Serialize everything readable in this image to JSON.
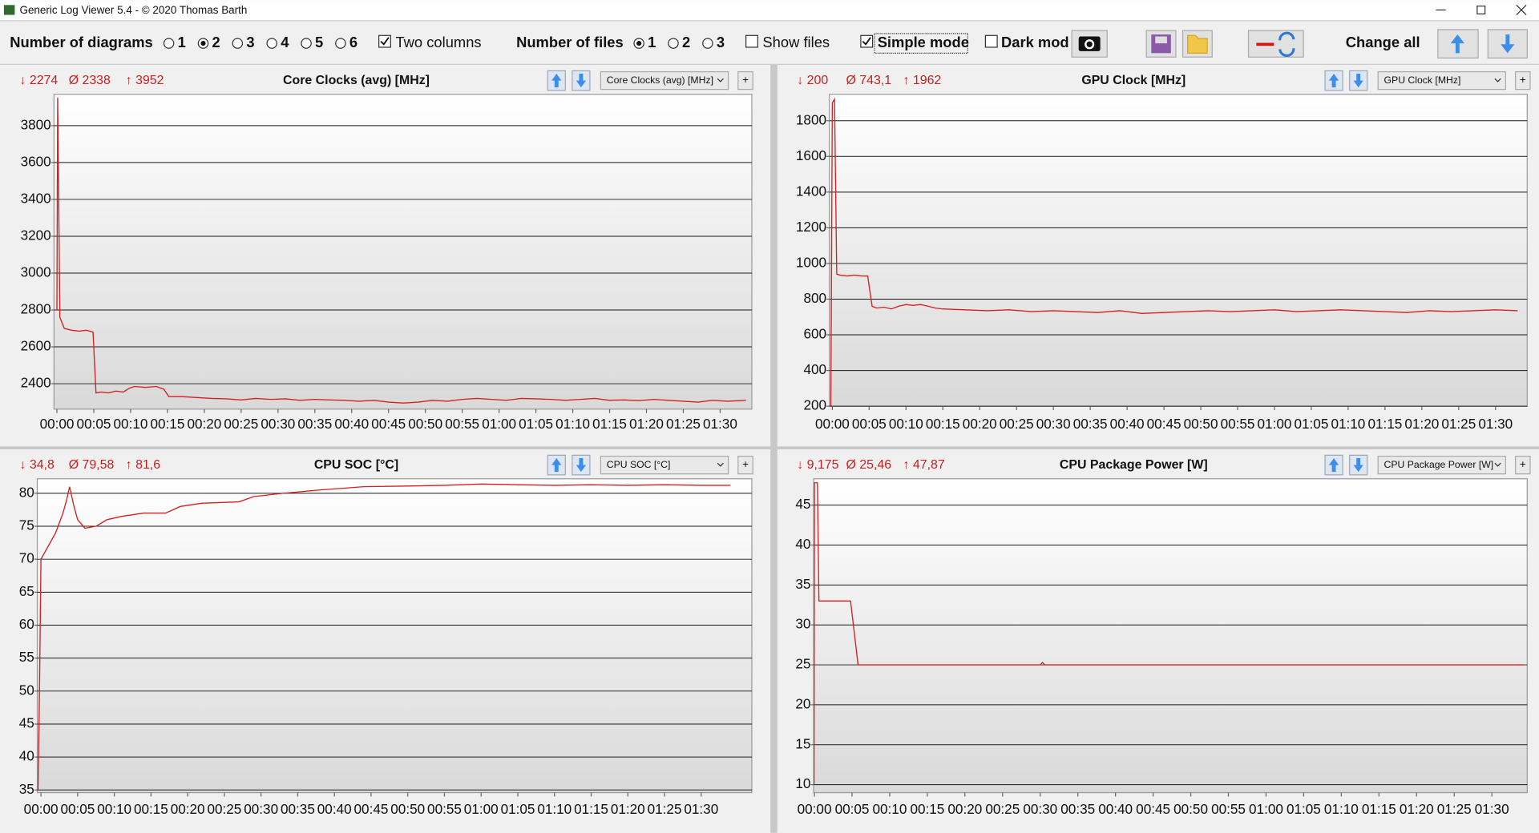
{
  "window": {
    "title": "Generic Log Viewer 5.4 - © 2020 Thomas Barth"
  },
  "toolbar": {
    "diagrams_label": "Number of diagrams",
    "diagram_options": [
      "1",
      "2",
      "3",
      "4",
      "5",
      "6"
    ],
    "two_columns": "Two columns",
    "files_label": "Number of files",
    "file_options": [
      "1",
      "2",
      "3"
    ],
    "show_files": "Show files",
    "simple_mode": "Simple mode",
    "dark_mode": "Dark mod",
    "change_all": "Change all"
  },
  "chart_data": [
    {
      "type": "line",
      "title": "Core Clocks (avg) [MHz]",
      "stats": [
        "↓ 2274",
        "Ø 2338",
        "↑ 3952"
      ],
      "selector": "Core Clocks (avg) [MHz]",
      "add_button": "+",
      "color": "#d42020",
      "grid": true,
      "xlim": [
        -0.4,
        94.3
      ],
      "ylim": [
        2262,
        3970
      ],
      "yticks": [
        2400,
        2600,
        2800,
        3000,
        3200,
        3400,
        3600,
        3800
      ],
      "xticks": [
        {
          "value": 0,
          "label": "00:00"
        },
        {
          "value": 5,
          "label": "00:05"
        },
        {
          "value": 10,
          "label": "00:10"
        },
        {
          "value": 15,
          "label": "00:15"
        },
        {
          "value": 20,
          "label": "00:20"
        },
        {
          "value": 25,
          "label": "00:25"
        },
        {
          "value": 30,
          "label": "00:30"
        },
        {
          "value": 35,
          "label": "00:35"
        },
        {
          "value": 40,
          "label": "00:40"
        },
        {
          "value": 45,
          "label": "00:45"
        },
        {
          "value": 50,
          "label": "00:50"
        },
        {
          "value": 55,
          "label": "00:55"
        },
        {
          "value": 60,
          "label": "01:00"
        },
        {
          "value": 65,
          "label": "01:05"
        },
        {
          "value": 70,
          "label": "01:10"
        },
        {
          "value": 75,
          "label": "01:15"
        },
        {
          "value": 80,
          "label": "01:20"
        },
        {
          "value": 85,
          "label": "01:25"
        },
        {
          "value": 90,
          "label": "01:30"
        }
      ],
      "x": [
        0,
        0.1,
        0.4,
        1,
        2,
        3,
        4,
        4.9,
        5.3,
        6,
        7,
        8,
        9,
        9.8,
        10.5,
        12,
        13.5,
        14.5,
        15.2,
        17,
        19,
        21,
        23,
        25,
        27,
        29,
        31,
        33,
        35,
        37,
        39,
        41,
        43,
        45,
        47,
        49,
        51,
        53,
        55,
        57,
        59,
        61,
        63,
        65,
        67,
        69,
        71,
        73,
        75,
        77,
        79,
        81,
        83,
        85,
        87,
        89,
        91,
        93.5
      ],
      "values": [
        2800,
        3952,
        2760,
        2700,
        2690,
        2685,
        2690,
        2680,
        2350,
        2355,
        2350,
        2360,
        2355,
        2375,
        2385,
        2380,
        2385,
        2370,
        2330,
        2330,
        2325,
        2320,
        2318,
        2312,
        2320,
        2315,
        2318,
        2310,
        2315,
        2312,
        2310,
        2305,
        2310,
        2300,
        2295,
        2300,
        2310,
        2305,
        2315,
        2320,
        2315,
        2310,
        2320,
        2318,
        2315,
        2310,
        2315,
        2320,
        2310,
        2312,
        2308,
        2315,
        2310,
        2305,
        2300,
        2310,
        2305,
        2310
      ]
    },
    {
      "type": "line",
      "title": "GPU Clock [MHz]",
      "stats": [
        "↓ 200",
        "Ø 743,1",
        "↑ 1962"
      ],
      "selector": "GPU Clock [MHz]",
      "add_button": "+",
      "color": "#d42020",
      "grid": true,
      "xlim": [
        -0.4,
        94.3
      ],
      "ylim": [
        200,
        1948
      ],
      "yticks": [
        200,
        400,
        600,
        800,
        1000,
        1200,
        1400,
        1600,
        1800
      ],
      "xticks": [
        {
          "value": 0,
          "label": "00:00"
        },
        {
          "value": 5,
          "label": "00:05"
        },
        {
          "value": 10,
          "label": "00:10"
        },
        {
          "value": 15,
          "label": "00:15"
        },
        {
          "value": 20,
          "label": "00:20"
        },
        {
          "value": 25,
          "label": "00:25"
        },
        {
          "value": 30,
          "label": "00:30"
        },
        {
          "value": 35,
          "label": "00:35"
        },
        {
          "value": 40,
          "label": "00:40"
        },
        {
          "value": 45,
          "label": "00:45"
        },
        {
          "value": 50,
          "label": "00:50"
        },
        {
          "value": 55,
          "label": "00:55"
        },
        {
          "value": 60,
          "label": "01:00"
        },
        {
          "value": 65,
          "label": "01:05"
        },
        {
          "value": 70,
          "label": "01:10"
        },
        {
          "value": 75,
          "label": "01:15"
        },
        {
          "value": 80,
          "label": "01:20"
        },
        {
          "value": 85,
          "label": "01:25"
        },
        {
          "value": 90,
          "label": "01:30"
        }
      ],
      "x": [
        -0.2,
        0,
        0.3,
        0.6,
        1,
        2,
        3,
        4,
        4.8,
        5.4,
        6,
        7,
        8,
        9,
        10,
        11,
        12,
        13,
        14,
        15,
        18,
        21,
        24,
        27,
        30,
        33,
        36,
        39,
        42,
        45,
        48,
        51,
        54,
        57,
        60,
        63,
        66,
        69,
        72,
        75,
        78,
        81,
        84,
        87,
        90,
        93
      ],
      "values": [
        200,
        1900,
        1920,
        940,
        935,
        930,
        935,
        930,
        930,
        760,
        750,
        755,
        745,
        760,
        770,
        765,
        770,
        760,
        750,
        745,
        740,
        735,
        740,
        730,
        735,
        730,
        725,
        735,
        720,
        725,
        730,
        735,
        730,
        735,
        740,
        730,
        735,
        740,
        735,
        730,
        725,
        735,
        730,
        735,
        740,
        735
      ]
    },
    {
      "type": "line",
      "title": "CPU SOC [°C]",
      "stats": [
        "↓ 34,8",
        "Ø 79,58",
        "↑ 81,6"
      ],
      "selector": "CPU SOC [°C]",
      "add_button": "+",
      "color": "#d42020",
      "grid": true,
      "xlim": [
        -0.5,
        96.9
      ],
      "ylim": [
        34.6,
        82.2
      ],
      "yticks": [
        35,
        40,
        45,
        50,
        55,
        60,
        65,
        70,
        75,
        80
      ],
      "xticks": [
        {
          "value": 0,
          "label": "00:00"
        },
        {
          "value": 5,
          "label": "00:05"
        },
        {
          "value": 10,
          "label": "00:10"
        },
        {
          "value": 15,
          "label": "00:15"
        },
        {
          "value": 20,
          "label": "00:20"
        },
        {
          "value": 25,
          "label": "00:25"
        },
        {
          "value": 30,
          "label": "00:30"
        },
        {
          "value": 35,
          "label": "00:35"
        },
        {
          "value": 40,
          "label": "00:40"
        },
        {
          "value": 45,
          "label": "00:45"
        },
        {
          "value": 50,
          "label": "00:50"
        },
        {
          "value": 55,
          "label": "00:55"
        },
        {
          "value": 60,
          "label": "01:00"
        },
        {
          "value": 65,
          "label": "01:05"
        },
        {
          "value": 70,
          "label": "01:10"
        },
        {
          "value": 75,
          "label": "01:15"
        },
        {
          "value": 80,
          "label": "01:20"
        },
        {
          "value": 85,
          "label": "01:25"
        },
        {
          "value": 90,
          "label": "01:30"
        }
      ],
      "x": [
        -0.4,
        -0.2,
        0,
        0.5,
        1,
        2,
        3,
        3.5,
        3.9,
        4.5,
        5,
        6,
        7.5,
        9,
        11,
        14,
        17,
        19,
        22,
        27,
        29,
        33,
        38,
        44,
        50,
        55,
        60,
        65,
        70,
        75,
        80,
        85,
        90,
        94
      ],
      "values": [
        35,
        50,
        70,
        71,
        72,
        74,
        77,
        79,
        81,
        78,
        76,
        74.7,
        75,
        76,
        76.5,
        77,
        77,
        78,
        78.5,
        78.7,
        79.5,
        80,
        80.5,
        81,
        81.1,
        81.2,
        81.4,
        81.3,
        81.2,
        81.3,
        81.2,
        81.3,
        81.2,
        81.2
      ]
    },
    {
      "type": "line",
      "title": "CPU Package Power [W]",
      "stats": [
        "↓ 9,175",
        "Ø 25,46",
        "↑ 47,87"
      ],
      "selector": "CPU Package Power [W]",
      "add_button": "+",
      "color": "#d42020",
      "grid": true,
      "xlim": [
        -0.1,
        94.7
      ],
      "ylim": [
        9,
        48.3
      ],
      "yticks": [
        10,
        15,
        20,
        25,
        30,
        35,
        40,
        45
      ],
      "xticks": [
        {
          "value": 0,
          "label": "00:00"
        },
        {
          "value": 5,
          "label": "00:05"
        },
        {
          "value": 10,
          "label": "00:10"
        },
        {
          "value": 15,
          "label": "00:15"
        },
        {
          "value": 20,
          "label": "00:20"
        },
        {
          "value": 25,
          "label": "00:25"
        },
        {
          "value": 30,
          "label": "00:30"
        },
        {
          "value": 35,
          "label": "00:35"
        },
        {
          "value": 40,
          "label": "00:40"
        },
        {
          "value": 45,
          "label": "00:45"
        },
        {
          "value": 50,
          "label": "00:50"
        },
        {
          "value": 55,
          "label": "00:55"
        },
        {
          "value": 60,
          "label": "01:00"
        },
        {
          "value": 65,
          "label": "01:05"
        },
        {
          "value": 70,
          "label": "01:10"
        },
        {
          "value": 75,
          "label": "01:15"
        },
        {
          "value": 80,
          "label": "01:20"
        },
        {
          "value": 85,
          "label": "01:25"
        },
        {
          "value": 90,
          "label": "01:30"
        }
      ],
      "x": [
        -0.05,
        0,
        0.1,
        0.4,
        0.6,
        1,
        3,
        4.8,
        5.8,
        6.5,
        30,
        30.3,
        30.6,
        94.3
      ],
      "values": [
        10,
        47.8,
        47.8,
        47.8,
        33,
        33,
        33,
        33,
        25,
        25,
        25,
        25.3,
        25,
        25
      ]
    }
  ]
}
